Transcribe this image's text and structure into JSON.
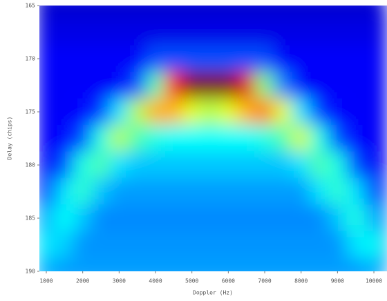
{
  "chart_data": {
    "type": "heatmap",
    "x_label": "Doppler (Hz)",
    "y_label": "Delay (chips)",
    "xlim": [
      810,
      10360
    ],
    "ylim": [
      165,
      190
    ],
    "y_inverted": true,
    "xticks": [
      1000,
      2000,
      3000,
      4000,
      5000,
      6000,
      7000,
      8000,
      9000,
      10000
    ],
    "yticks": [
      165,
      170,
      175,
      180,
      185,
      190
    ],
    "colormap": "jet",
    "zlim": [
      0,
      1
    ],
    "x": [
      1000,
      1500,
      2000,
      2500,
      3000,
      3500,
      4000,
      4500,
      5000,
      5500,
      6000,
      6500,
      7000,
      7500,
      8000,
      8500,
      9000,
      9500,
      10000
    ],
    "y": [
      165,
      167.5,
      170,
      172.5,
      175,
      177.5,
      180,
      182.5,
      185,
      187.5,
      190
    ],
    "z": [
      [
        0.08,
        0.08,
        0.08,
        0.08,
        0.08,
        0.08,
        0.08,
        0.08,
        0.08,
        0.08,
        0.08,
        0.08,
        0.08,
        0.08,
        0.08,
        0.08,
        0.08,
        0.08,
        0.08
      ],
      [
        0.1,
        0.1,
        0.1,
        0.1,
        0.1,
        0.1,
        0.1,
        0.1,
        0.1,
        0.1,
        0.1,
        0.1,
        0.1,
        0.1,
        0.1,
        0.1,
        0.1,
        0.1,
        0.1
      ],
      [
        0.12,
        0.12,
        0.12,
        0.12,
        0.12,
        0.12,
        0.2,
        0.2,
        0.2,
        0.2,
        0.2,
        0.2,
        0.2,
        0.12,
        0.12,
        0.12,
        0.12,
        0.12,
        0.12
      ],
      [
        0.12,
        0.12,
        0.12,
        0.12,
        0.12,
        0.2,
        0.45,
        0.85,
        1,
        1,
        1,
        0.9,
        0.5,
        0.25,
        0.12,
        0.12,
        0.12,
        0.12,
        0.12
      ],
      [
        0.12,
        0.12,
        0.13,
        0.18,
        0.35,
        0.55,
        0.7,
        0.7,
        0.6,
        0.55,
        0.6,
        0.7,
        0.75,
        0.6,
        0.35,
        0.18,
        0.13,
        0.12,
        0.12
      ],
      [
        0.12,
        0.13,
        0.2,
        0.4,
        0.55,
        0.45,
        0.4,
        0.38,
        0.38,
        0.38,
        0.38,
        0.38,
        0.4,
        0.45,
        0.58,
        0.4,
        0.2,
        0.13,
        0.12
      ],
      [
        0.12,
        0.2,
        0.4,
        0.45,
        0.35,
        0.32,
        0.32,
        0.32,
        0.32,
        0.32,
        0.32,
        0.32,
        0.32,
        0.32,
        0.35,
        0.45,
        0.4,
        0.2,
        0.12
      ],
      [
        0.18,
        0.35,
        0.42,
        0.32,
        0.28,
        0.28,
        0.28,
        0.28,
        0.28,
        0.28,
        0.28,
        0.28,
        0.28,
        0.28,
        0.28,
        0.35,
        0.42,
        0.35,
        0.2
      ],
      [
        0.3,
        0.38,
        0.32,
        0.26,
        0.26,
        0.26,
        0.26,
        0.26,
        0.26,
        0.26,
        0.26,
        0.26,
        0.26,
        0.26,
        0.26,
        0.26,
        0.32,
        0.4,
        0.3
      ],
      [
        0.35,
        0.33,
        0.27,
        0.27,
        0.27,
        0.27,
        0.27,
        0.27,
        0.27,
        0.27,
        0.27,
        0.27,
        0.27,
        0.27,
        0.27,
        0.27,
        0.27,
        0.35,
        0.38
      ],
      [
        0.3,
        0.28,
        0.28,
        0.28,
        0.28,
        0.28,
        0.28,
        0.28,
        0.28,
        0.28,
        0.28,
        0.28,
        0.28,
        0.28,
        0.28,
        0.28,
        0.28,
        0.28,
        0.3
      ]
    ]
  }
}
